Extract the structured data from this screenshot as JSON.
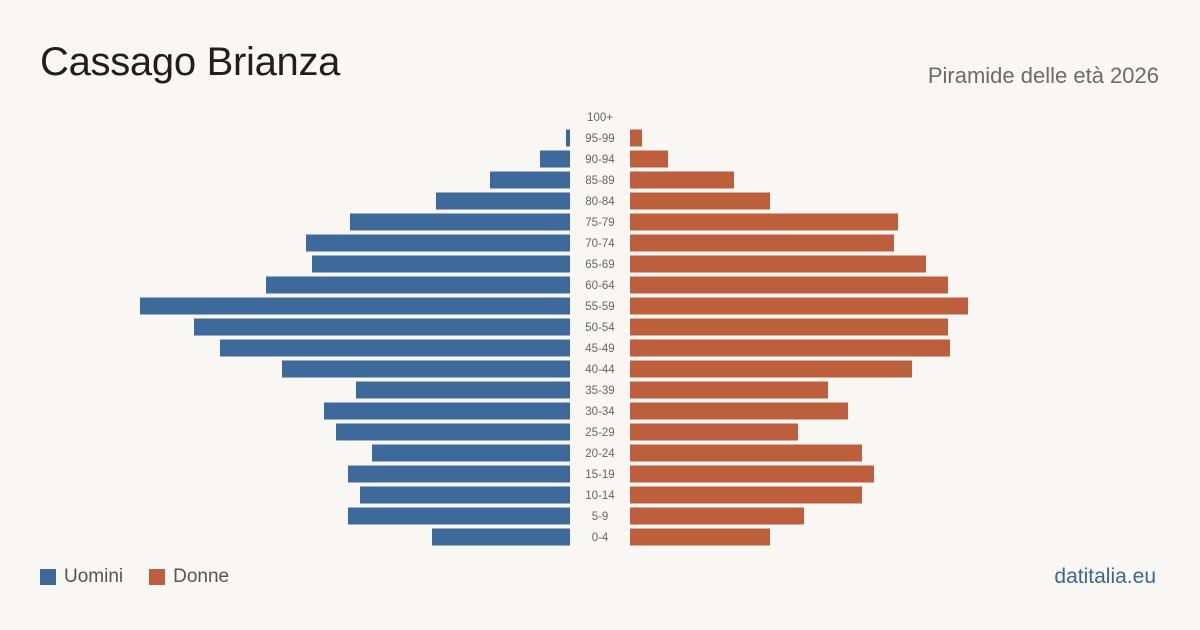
{
  "header": {
    "title": "Cassago Brianza",
    "subtitle": "Piramide delle età 2026"
  },
  "legend": {
    "men_label": "Uomini",
    "women_label": "Donne"
  },
  "footer": {
    "source": "datitalia.eu"
  },
  "colors": {
    "men": "#3d6a9b",
    "women": "#bd5f3c"
  },
  "chart_data": {
    "type": "bar",
    "orientation": "horizontal-pyramid",
    "categories": [
      "100+",
      "95-99",
      "90-94",
      "85-89",
      "80-84",
      "75-79",
      "70-74",
      "65-69",
      "60-64",
      "55-59",
      "50-54",
      "45-49",
      "40-44",
      "35-39",
      "30-34",
      "25-29",
      "20-24",
      "15-19",
      "10-14",
      "5-9",
      "0-4"
    ],
    "series": [
      {
        "name": "Uomini",
        "values": [
          0,
          2,
          15,
          40,
          67,
          110,
          132,
          129,
          152,
          215,
          188,
          175,
          144,
          107,
          123,
          117,
          99,
          111,
          105,
          111,
          69
        ]
      },
      {
        "name": "Donne",
        "values": [
          0,
          6,
          19,
          52,
          70,
          134,
          132,
          148,
          159,
          169,
          159,
          160,
          141,
          99,
          109,
          84,
          116,
          122,
          116,
          87,
          70
        ]
      }
    ],
    "xlabel": "",
    "ylabel": "",
    "grid": false,
    "legend_position": "bottom-left"
  }
}
